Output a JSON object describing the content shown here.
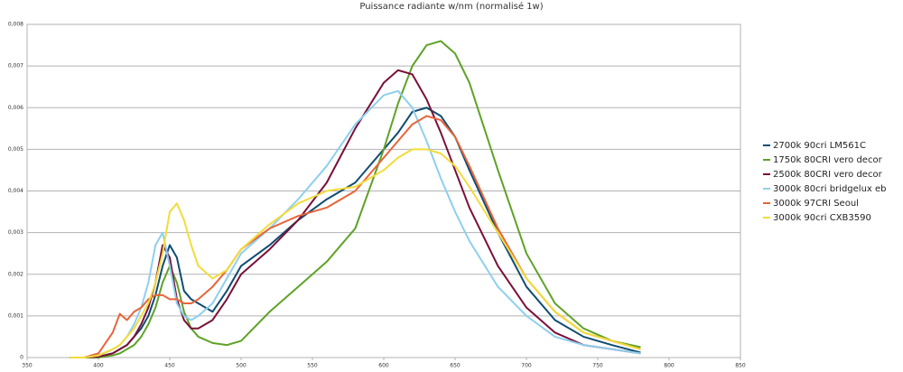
{
  "chart_data": {
    "type": "line",
    "title": "Puissance radiante w/nm (normalisé 1w)",
    "x": [
      380,
      390,
      400,
      410,
      415,
      420,
      425,
      430,
      435,
      440,
      445,
      450,
      455,
      460,
      465,
      470,
      480,
      490,
      500,
      520,
      540,
      560,
      580,
      600,
      610,
      620,
      630,
      640,
      650,
      660,
      680,
      700,
      720,
      740,
      760,
      780
    ],
    "xlim": [
      350,
      850
    ],
    "xticks": [
      350,
      400,
      450,
      500,
      550,
      600,
      650,
      700,
      750,
      800,
      850
    ],
    "ylim": [
      0,
      0.008
    ],
    "yticks": [
      {
        "value": 0,
        "label": "0"
      },
      {
        "value": 0.001,
        "label": "0,001"
      },
      {
        "value": 0.002,
        "label": "0,002"
      },
      {
        "value": 0.003,
        "label": "0,003"
      },
      {
        "value": 0.004,
        "label": "0,004"
      },
      {
        "value": 0.005,
        "label": "0,005"
      },
      {
        "value": 0.006,
        "label": "0,006"
      },
      {
        "value": 0.007,
        "label": "0,007"
      },
      {
        "value": 0.008,
        "label": "0,008"
      }
    ],
    "grid": true,
    "legend": "right",
    "series": [
      {
        "name": "2700k 90cri LM561C",
        "color": "#0f4c72",
        "values": [
          0,
          0,
          2e-05,
          0.0001,
          0.0002,
          0.0003,
          0.0005,
          0.0007,
          0.001,
          0.0015,
          0.0022,
          0.0027,
          0.0024,
          0.0016,
          0.0014,
          0.0013,
          0.0011,
          0.0016,
          0.0022,
          0.0027,
          0.0033,
          0.0038,
          0.0042,
          0.005,
          0.0054,
          0.0059,
          0.006,
          0.0058,
          0.0053,
          0.0045,
          0.003,
          0.0017,
          0.0009,
          0.0005,
          0.0003,
          0.00012
        ]
      },
      {
        "name": "1750k 80CRI vero decor",
        "color": "#5ea227",
        "values": [
          0,
          0,
          0,
          5e-05,
          0.0001,
          0.0002,
          0.0003,
          0.0005,
          0.0008,
          0.0012,
          0.0018,
          0.0022,
          0.0018,
          0.0011,
          0.0007,
          0.0005,
          0.00035,
          0.0003,
          0.0004,
          0.0011,
          0.0017,
          0.0023,
          0.0031,
          0.005,
          0.0061,
          0.007,
          0.0075,
          0.0076,
          0.0073,
          0.0066,
          0.0045,
          0.0025,
          0.0013,
          0.0007,
          0.0004,
          0.00025
        ]
      },
      {
        "name": "2500k 80CRI  vero decor",
        "color": "#7a1038",
        "values": [
          0,
          0,
          2e-05,
          0.0001,
          0.0002,
          0.0003,
          0.0005,
          0.0008,
          0.0012,
          0.0018,
          0.0027,
          0.0024,
          0.0014,
          0.0009,
          0.0007,
          0.0007,
          0.0009,
          0.0014,
          0.002,
          0.0026,
          0.0033,
          0.0042,
          0.0055,
          0.0066,
          0.0069,
          0.0068,
          0.0062,
          0.0054,
          0.0045,
          0.0036,
          0.0022,
          0.0012,
          0.0006,
          0.0003,
          0.0002,
          0.0001
        ]
      },
      {
        "name": "3000k 80cri bridgelux eb",
        "color": "#8ecfee",
        "values": [
          0,
          0,
          5e-05,
          0.0002,
          0.0003,
          0.0005,
          0.0008,
          0.0012,
          0.0018,
          0.0027,
          0.003,
          0.0022,
          0.0013,
          0.001,
          0.0009,
          0.001,
          0.0013,
          0.0019,
          0.0025,
          0.0031,
          0.0038,
          0.0046,
          0.0056,
          0.0063,
          0.0064,
          0.006,
          0.0052,
          0.0043,
          0.0035,
          0.0028,
          0.0017,
          0.001,
          0.0005,
          0.0003,
          0.0002,
          0.0001
        ]
      },
      {
        "name": "3000k 97CRI Seoul",
        "color": "#e8643a",
        "values": [
          0,
          0,
          0.0001,
          0.0006,
          0.00105,
          0.0009,
          0.0011,
          0.0012,
          0.0014,
          0.0015,
          0.0015,
          0.0014,
          0.0014,
          0.0013,
          0.0013,
          0.0014,
          0.0017,
          0.0021,
          0.0026,
          0.0031,
          0.0034,
          0.0036,
          0.004,
          0.0048,
          0.0052,
          0.0056,
          0.0058,
          0.0057,
          0.0053,
          0.0046,
          0.0031,
          0.0019,
          0.0011,
          0.0006,
          0.0004,
          0.0002
        ]
      },
      {
        "name": "3000k 90cri CXB3590",
        "color": "#f2dc3a",
        "values": [
          0,
          0,
          5e-05,
          0.0002,
          0.0003,
          0.0005,
          0.0007,
          0.001,
          0.0013,
          0.0018,
          0.0025,
          0.0035,
          0.0037,
          0.0033,
          0.0027,
          0.0022,
          0.0019,
          0.0021,
          0.0026,
          0.0032,
          0.0037,
          0.004,
          0.0041,
          0.0045,
          0.0048,
          0.005,
          0.005,
          0.0049,
          0.0046,
          0.0041,
          0.003,
          0.0019,
          0.0011,
          0.0006,
          0.0004,
          0.0002
        ]
      }
    ]
  }
}
